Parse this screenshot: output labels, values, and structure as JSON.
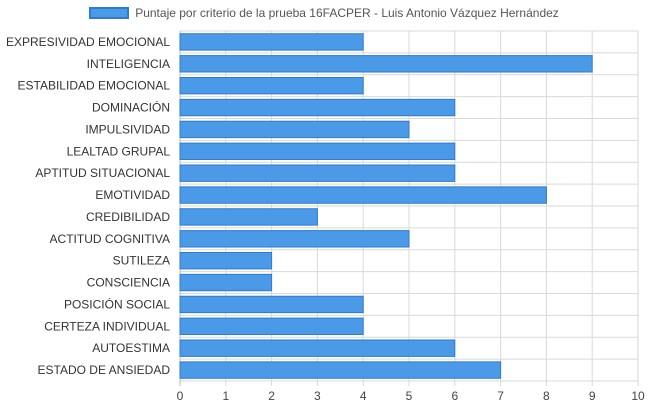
{
  "chart_data": {
    "type": "bar",
    "orientation": "horizontal",
    "categories": [
      "EXPRESIVIDAD EMOCIONAL",
      "INTELIGENCIA",
      "ESTABILIDAD EMOCIONAL",
      "DOMINACIÓN",
      "IMPULSIVIDAD",
      "LEALTAD GRUPAL",
      "APTITUD SITUACIONAL",
      "EMOTIVIDAD",
      "CREDIBILIDAD",
      "ACTITUD COGNITIVA",
      "SUTILEZA",
      "CONSCIENCIA",
      "POSICIÓN SOCIAL",
      "CERTEZA INDIVIDUAL",
      "AUTOESTIMA",
      "ESTADO DE ANSIEDAD"
    ],
    "series": [
      {
        "name": "Puntaje por criterio de la prueba 16FACPER - Luis Antonio Vázquez Hernández",
        "values": [
          4,
          9,
          4,
          6,
          5,
          6,
          6,
          8,
          3,
          5,
          2,
          2,
          4,
          4,
          6,
          7
        ]
      }
    ],
    "xlim": [
      0,
      10
    ],
    "xticks": [
      "0",
      "1",
      "2",
      "3",
      "4",
      "5",
      "6",
      "7",
      "8",
      "9",
      "10"
    ],
    "grid": true,
    "legend_position": "top",
    "colors": {
      "bar_fill": "#4a9ae8",
      "bar_stroke": "#2f7bd0",
      "grid": "#d9d9d9",
      "axis": "#bbbbbb",
      "text": "#333333"
    }
  }
}
